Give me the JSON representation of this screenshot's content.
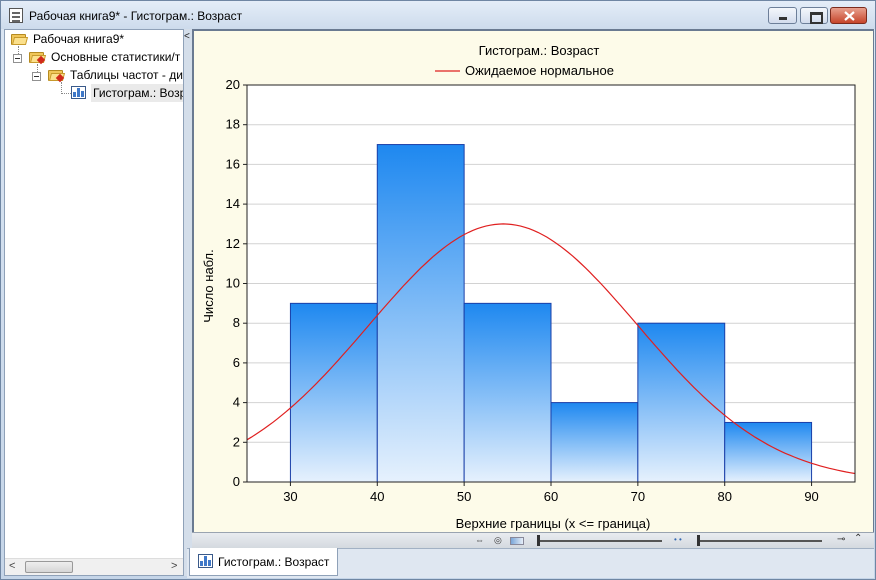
{
  "window": {
    "title": "Рабочая книга9* - Гистограм.: Возраст"
  },
  "tree": {
    "items": [
      {
        "label": "Рабочая книга9*",
        "icon": "folder-open-icon"
      },
      {
        "label": "Основные статистики/т",
        "icon": "folder-stats-icon"
      },
      {
        "label": "Таблицы частот - ди",
        "icon": "folder-stats-icon"
      },
      {
        "label": "Гистограм.: Возр",
        "icon": "histogram-icon"
      }
    ],
    "collapse_glyph": "<"
  },
  "tabs": [
    {
      "label": "Гистограм.: Возраст",
      "icon": "histogram-icon"
    }
  ],
  "chart_data": {
    "type": "bar",
    "title": "Гистограм.: Возраст",
    "legend": [
      {
        "name": "Ожидаемое нормальное",
        "color": "#e02020"
      }
    ],
    "legend_placement": "top-center",
    "xlabel": "Верхние границы (x <= граница)",
    "ylabel": "Число набл.",
    "xlim": [
      25,
      95
    ],
    "ylim": [
      0,
      20
    ],
    "xticks": [
      30,
      40,
      50,
      60,
      70,
      80,
      90
    ],
    "yticks": [
      0,
      2,
      4,
      6,
      8,
      10,
      12,
      14,
      16,
      18,
      20
    ],
    "grid": "horizontal",
    "bins": [
      {
        "from": 30,
        "to": 40,
        "count": 9
      },
      {
        "from": 40,
        "to": 50,
        "count": 17
      },
      {
        "from": 50,
        "to": 60,
        "count": 9
      },
      {
        "from": 60,
        "to": 70,
        "count": 4
      },
      {
        "from": 70,
        "to": 80,
        "count": 8
      },
      {
        "from": 80,
        "to": 90,
        "count": 3
      }
    ],
    "normal_curve": {
      "name": "Ожидаемое нормальное",
      "color": "#e02020",
      "mean": 54.5,
      "sd": 15.5,
      "peak": 13
    },
    "bar_colors": {
      "top": "#1e88f0",
      "bottom": "#e6f1fd",
      "edge": "#1a3fa8"
    }
  }
}
